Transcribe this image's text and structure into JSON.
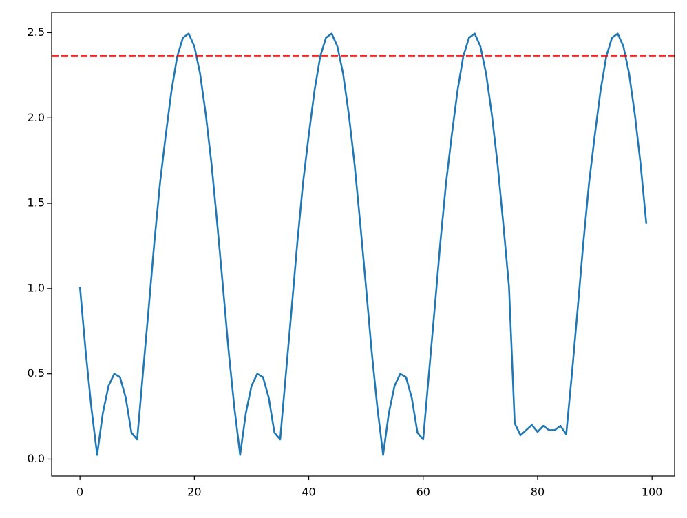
{
  "chart_data": {
    "type": "line",
    "x": [
      0,
      1,
      2,
      3,
      4,
      5,
      6,
      7,
      8,
      9,
      10,
      11,
      12,
      13,
      14,
      15,
      16,
      17,
      18,
      19,
      20,
      21,
      22,
      23,
      24,
      25,
      26,
      27,
      28,
      29,
      30,
      31,
      32,
      33,
      34,
      35,
      36,
      37,
      38,
      39,
      40,
      41,
      42,
      43,
      44,
      45,
      46,
      47,
      48,
      49,
      50,
      51,
      52,
      53,
      54,
      55,
      56,
      57,
      58,
      59,
      60,
      61,
      62,
      63,
      64,
      65,
      66,
      67,
      68,
      69,
      70,
      71,
      72,
      73,
      74,
      75,
      76,
      77,
      78,
      79,
      80,
      81,
      82,
      83,
      84,
      85,
      86,
      87,
      88,
      89,
      90,
      91,
      92,
      93,
      94,
      95,
      96,
      97,
      98,
      99
    ],
    "series": [
      {
        "color": "#1f77b4",
        "values": [
          1.01,
          0.63,
          0.3,
          0.025,
          0.27,
          0.43,
          0.5,
          0.48,
          0.36,
          0.155,
          0.115,
          0.5,
          0.88,
          1.27,
          1.62,
          1.9,
          2.16,
          2.36,
          2.47,
          2.495,
          2.42,
          2.26,
          2.02,
          1.73,
          1.38,
          1.01,
          0.63,
          0.3,
          0.025,
          0.27,
          0.43,
          0.5,
          0.48,
          0.36,
          0.155,
          0.115,
          0.5,
          0.88,
          1.27,
          1.62,
          1.9,
          2.16,
          2.36,
          2.47,
          2.495,
          2.42,
          2.26,
          2.02,
          1.73,
          1.38,
          1.01,
          0.63,
          0.3,
          0.025,
          0.27,
          0.43,
          0.5,
          0.48,
          0.36,
          0.155,
          0.115,
          0.5,
          0.88,
          1.27,
          1.62,
          1.9,
          2.16,
          2.36,
          2.47,
          2.495,
          2.42,
          2.26,
          2.02,
          1.73,
          1.38,
          1.01,
          0.21,
          0.14,
          0.17,
          0.2,
          0.16,
          0.195,
          0.17,
          0.17,
          0.195,
          0.145,
          0.5,
          0.88,
          1.27,
          1.62,
          1.9,
          2.16,
          2.36,
          2.47,
          2.495,
          2.42,
          2.26,
          2.02,
          1.73,
          1.38
        ]
      }
    ],
    "hlines": [
      {
        "value": 2.363,
        "color": "#ff0000",
        "style": "dashed"
      }
    ],
    "xlim": [
      -4.95,
      103.95
    ],
    "xticks": [
      0,
      20,
      40,
      60,
      80,
      100
    ],
    "ylim": [
      -0.099,
      2.619
    ],
    "yticks": [
      {
        "value": 0,
        "label": "0.0"
      },
      0.5,
      {
        "value": 1,
        "label": "1.0"
      },
      1.5,
      {
        "value": 2,
        "label": "2.0"
      },
      2.5
    ],
    "grid": false
  }
}
